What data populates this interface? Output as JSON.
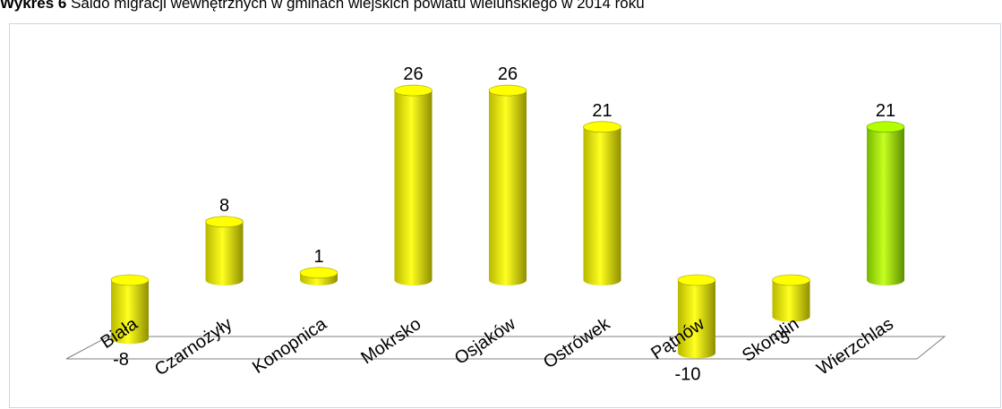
{
  "title": {
    "bold": "Wykres 6",
    "text": " Saldo migracji wewnętrznych w gminach wiejskich powiatu wieluńskiego w 2014 roku"
  },
  "colors": {
    "bar": "#ffff00",
    "bar_shade": "#9a9a00",
    "highlight_bar": "#b3ff00",
    "highlight_shade": "#5e9a00",
    "floor": "#ffffff",
    "floor_stroke": "#808080"
  },
  "chart_data": {
    "type": "bar",
    "style": "3d-cylinder",
    "categories": [
      "Biała",
      "Czarnożyły",
      "Konopnica",
      "Mokrsko",
      "Osjaków",
      "Ostrówek",
      "Pątnów",
      "Skomlin",
      "Wierzchlas"
    ],
    "values": [
      -8,
      8,
      1,
      26,
      26,
      21,
      -10,
      -5,
      21
    ],
    "data_labels": [
      "-8",
      "8",
      "1",
      "26",
      "26",
      "21",
      "-10",
      "-5",
      "21"
    ],
    "highlight_index": 8,
    "xlabel": "",
    "ylabel": "",
    "grid": false,
    "legend": false
  }
}
